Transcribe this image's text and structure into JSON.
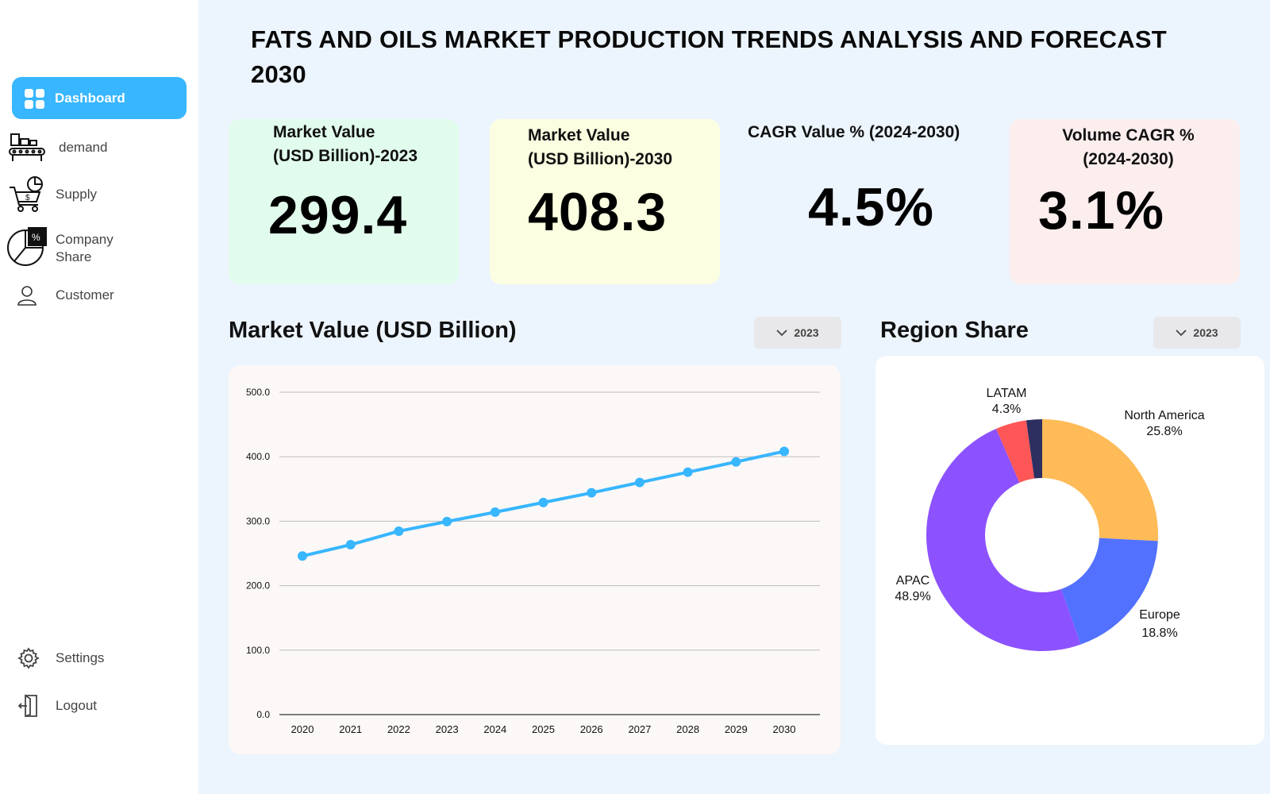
{
  "title": "FATS AND OILS  MARKET PRODUCTION TRENDS ANALYSIS AND FORECAST 2030",
  "sidebar": {
    "items": [
      {
        "label": "Dashboard",
        "icon": "dashboard-grid-icon",
        "active": true
      },
      {
        "label": "demand",
        "icon": "factory-conveyor-icon"
      },
      {
        "label": "Supply",
        "icon": "cart-icon"
      },
      {
        "label": "Company Share",
        "icon": "pie-percent-icon"
      },
      {
        "label": "Customer",
        "icon": "user-icon"
      }
    ],
    "settings": {
      "label": "Settings",
      "icon": "gear-icon"
    },
    "logout": {
      "label": "Logout",
      "icon": "logout-icon"
    }
  },
  "cards": [
    {
      "label_line1": "Market Value",
      "label_line2": "(USD Billion)-2023",
      "value": "299.4",
      "bg": "#e1fcec"
    },
    {
      "label_line1": "Market Value",
      "label_line2": "(USD Billion)-2030",
      "value": "408.3",
      "bg": "#fbfee0"
    },
    {
      "label_line1": "CAGR  Value % (2024-2030)",
      "value": "4.5%",
      "bg": "#ecf4fd"
    },
    {
      "label_line1": "Volume CAGR  %",
      "label_line2": "(2024-2030)",
      "value": "3.1%",
      "bg": "#fdeeee"
    }
  ],
  "line_section": {
    "title": "Market Value (USD Billion)",
    "dropdown": "2023"
  },
  "pie_section": {
    "title": "Region Share",
    "dropdown": "2023"
  },
  "chart_data": [
    {
      "type": "line",
      "title": "Market Value (USD Billion)",
      "x": [
        "2020",
        "2021",
        "2022",
        "2023",
        "2024",
        "2025",
        "2026",
        "2027",
        "2028",
        "2029",
        "2030"
      ],
      "series": [
        {
          "values": [
            246,
            263.5,
            284.5,
            299.4,
            314,
            329,
            344,
            360,
            376,
            392,
            408.3
          ],
          "color": "#38b6ff"
        }
      ],
      "ylim": [
        0,
        500
      ],
      "yticks": [
        "0.0",
        "100.0",
        "200.0",
        "300.0",
        "400.0",
        "500.0"
      ],
      "grid": true
    },
    {
      "type": "pie",
      "title": "Region Share",
      "slices": [
        {
          "label": "North America",
          "value": 25.8,
          "display": "25.8%",
          "color": "#ffbb57"
        },
        {
          "label": "Europe",
          "value": 18.8,
          "display": "18.8%",
          "color": "#5271ff"
        },
        {
          "label": "APAC",
          "value": 48.9,
          "display": "48.9%",
          "color": "#8c52ff"
        },
        {
          "label": "LATAM",
          "value": 4.3,
          "display": "4.3%",
          "color": "#ff5757"
        },
        {
          "label": "",
          "value": 2.2,
          "display": "",
          "color": "#2d2f61"
        }
      ]
    }
  ]
}
